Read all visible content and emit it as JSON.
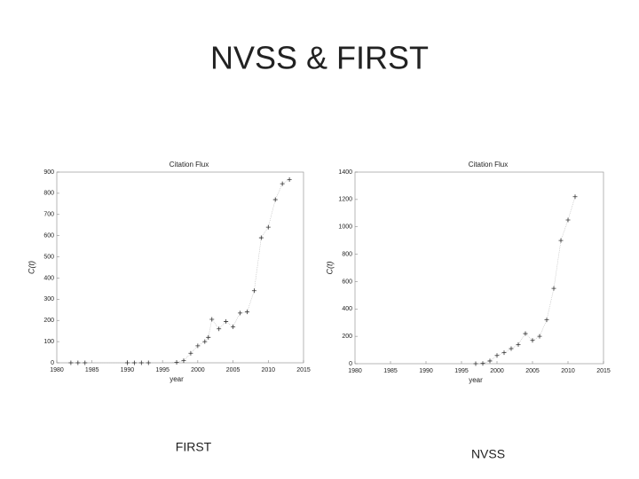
{
  "title": "NVSS & FIRST",
  "captions": [
    "FIRST",
    "NVSS"
  ],
  "chart_data": [
    {
      "type": "scatter",
      "title": "Citation Flux",
      "xlabel": "year",
      "ylabel": "C(t)",
      "color": "#333333",
      "xlim": [
        1980,
        2015
      ],
      "xticks": [
        1980,
        1985,
        1990,
        1995,
        2000,
        2005,
        2010,
        2015
      ],
      "ylim": [
        0,
        900
      ],
      "yticks": [
        0,
        100,
        200,
        300,
        400,
        500,
        600,
        700,
        800,
        900
      ],
      "x": [
        1982,
        1983,
        1984,
        1990,
        1991,
        1992,
        1993,
        1997,
        1998,
        1999,
        2000,
        2001,
        2001.5,
        2002,
        2003,
        2004,
        2005,
        2006,
        2007,
        2008,
        2009,
        2010,
        2011,
        2012,
        2013
      ],
      "values": [
        0,
        0,
        0,
        0,
        0,
        0,
        0,
        2,
        10,
        45,
        80,
        100,
        120,
        205,
        160,
        195,
        170,
        235,
        240,
        340,
        590,
        640,
        770,
        845,
        865
      ]
    },
    {
      "type": "scatter",
      "title": "Citation Flux",
      "xlabel": "year",
      "ylabel": "C(t)",
      "color": "#333333",
      "xlim": [
        1980,
        2015
      ],
      "xticks": [
        1980,
        1985,
        1990,
        1995,
        2000,
        2005,
        2010,
        2015
      ],
      "ylim": [
        0,
        1400
      ],
      "yticks": [
        0,
        200,
        400,
        600,
        800,
        1000,
        1200,
        1400
      ],
      "x": [
        1997,
        1998,
        1999,
        2000,
        2001,
        2002,
        2003,
        2004,
        2005,
        2006,
        2007,
        2008,
        2009,
        2010,
        2011
      ],
      "values": [
        0,
        2,
        20,
        60,
        80,
        110,
        140,
        220,
        170,
        200,
        320,
        550,
        900,
        1050,
        1220
      ]
    }
  ]
}
